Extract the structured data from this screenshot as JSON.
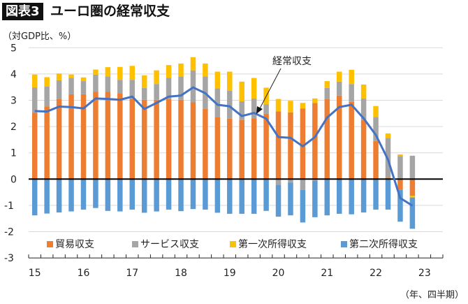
{
  "header": {
    "figure_label": "図表3",
    "title": "ユーロ圏の経常収支"
  },
  "chart_data": {
    "type": "bar",
    "stacked": true,
    "title": "ユーロ圏の経常収支",
    "ylabel": "（対GDP比、%）",
    "xlabel": "（年、四半期）",
    "ylim": [
      -3,
      5
    ],
    "yticks": [
      5,
      4,
      3,
      2,
      1,
      0,
      -1,
      -2,
      -3
    ],
    "xtick_labels": [
      "15",
      "16",
      "17",
      "18",
      "19",
      "20",
      "21",
      "22",
      "23"
    ],
    "grid": true,
    "legend_position": "bottom",
    "categories": [
      "2015Q1",
      "2015Q2",
      "2015Q3",
      "2015Q4",
      "2016Q1",
      "2016Q2",
      "2016Q3",
      "2016Q4",
      "2017Q1",
      "2017Q2",
      "2017Q3",
      "2017Q4",
      "2018Q1",
      "2018Q2",
      "2018Q3",
      "2018Q4",
      "2019Q1",
      "2019Q2",
      "2019Q3",
      "2019Q4",
      "2020Q1",
      "2020Q2",
      "2020Q3",
      "2020Q4",
      "2021Q1",
      "2021Q2",
      "2021Q3",
      "2021Q4",
      "2022Q1",
      "2022Q2",
      "2022Q3",
      "2022Q4"
    ],
    "series": [
      {
        "name": "貿易収支",
        "color": "#ED7D31",
        "values": [
          2.52,
          2.77,
          3.05,
          3.23,
          3.23,
          3.33,
          3.33,
          3.27,
          3.05,
          3.02,
          3.02,
          3.05,
          3.02,
          2.92,
          2.67,
          2.37,
          2.3,
          2.25,
          2.31,
          2.49,
          2.58,
          2.54,
          2.69,
          2.9,
          3.05,
          3.18,
          2.94,
          2.25,
          1.45,
          0.05,
          -0.41,
          -0.63
        ]
      },
      {
        "name": "サービス収支",
        "color": "#A5A5A5",
        "values": [
          0.97,
          0.75,
          0.71,
          0.62,
          0.5,
          0.65,
          0.58,
          0.51,
          0.73,
          0.45,
          0.6,
          0.81,
          0.89,
          1.22,
          1.24,
          1.08,
          1.06,
          0.71,
          0.76,
          0.36,
          -0.22,
          -0.13,
          -0.41,
          -0.07,
          0.42,
          0.53,
          0.68,
          0.82,
          0.91,
          1.52,
          0.88,
          0.89
        ]
      },
      {
        "name": "第一次所得収支",
        "color": "#FFC000",
        "values": [
          0.49,
          0.36,
          0.26,
          0.13,
          0.14,
          0.19,
          0.35,
          0.49,
          0.53,
          0.48,
          0.52,
          0.48,
          0.49,
          0.5,
          0.49,
          0.64,
          0.73,
          0.75,
          0.78,
          0.63,
          0.47,
          0.44,
          0.21,
          0.17,
          0.26,
          0.38,
          0.54,
          0.53,
          0.42,
          0.17,
          0.06,
          -0.07
        ]
      },
      {
        "name": "第二次所得収支",
        "color": "#5B9BD5",
        "values": [
          -1.38,
          -1.31,
          -1.27,
          -1.23,
          -1.16,
          -1.1,
          -1.21,
          -1.23,
          -1.16,
          -1.28,
          -1.23,
          -1.16,
          -1.22,
          -1.14,
          -1.16,
          -1.28,
          -1.32,
          -1.32,
          -1.32,
          -1.21,
          -1.21,
          -1.25,
          -1.24,
          -1.38,
          -1.38,
          -1.32,
          -1.34,
          -1.27,
          -1.16,
          -1.16,
          -1.21,
          -1.19
        ]
      }
    ],
    "line": {
      "name": "経常収支",
      "color": "#4472C4",
      "values": [
        2.59,
        2.57,
        2.76,
        2.74,
        2.69,
        3.07,
        3.05,
        3.02,
        3.14,
        2.67,
        2.9,
        3.14,
        3.18,
        3.49,
        3.27,
        2.83,
        2.77,
        2.4,
        2.52,
        2.3,
        1.6,
        1.57,
        1.25,
        1.6,
        2.34,
        2.74,
        2.83,
        2.31,
        1.68,
        0.74,
        -0.72,
        -1.01
      ]
    },
    "annotation": "経常収支"
  }
}
